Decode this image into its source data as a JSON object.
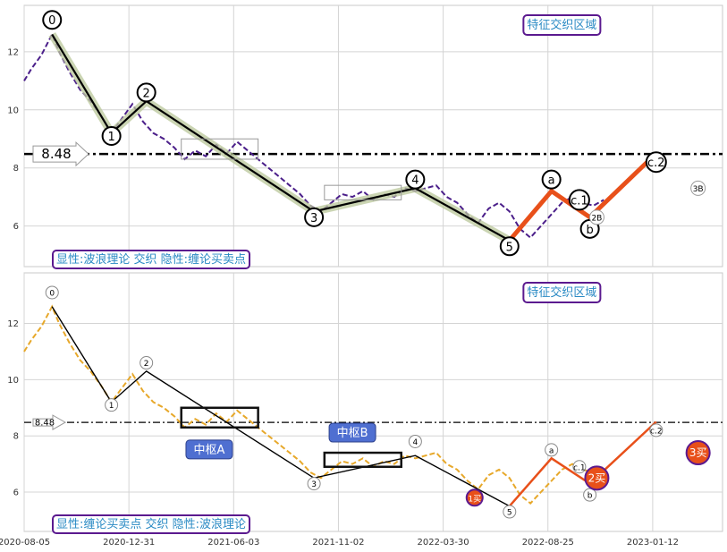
{
  "chart_data": [
    {
      "type": "line",
      "title": "",
      "panel_caption": "显性:波浪理论 交织 隐性:缠论买卖点",
      "feature_zone_label": "特征交织区域",
      "level_label": "8.48",
      "level_value": 8.48,
      "ylim": [
        4.6,
        13.6
      ],
      "y_ticks": [
        6,
        8,
        10,
        12
      ],
      "grid": true,
      "price_color": "#4b1f8a",
      "price": [
        [
          0,
          11.0
        ],
        [
          2,
          11.4
        ],
        [
          5,
          11.9
        ],
        [
          8,
          12.6
        ],
        [
          10,
          12.0
        ],
        [
          13,
          11.3
        ],
        [
          16,
          10.7
        ],
        [
          19,
          10.3
        ],
        [
          22,
          9.8
        ],
        [
          25,
          9.2
        ],
        [
          28,
          9.7
        ],
        [
          31,
          10.2
        ],
        [
          34,
          9.6
        ],
        [
          37,
          9.2
        ],
        [
          40,
          9.0
        ],
        [
          43,
          8.7
        ],
        [
          46,
          8.3
        ],
        [
          49,
          8.6
        ],
        [
          52,
          8.4
        ],
        [
          55,
          8.8
        ],
        [
          58,
          8.5
        ],
        [
          61,
          8.9
        ],
        [
          64,
          8.6
        ],
        [
          67,
          8.3
        ],
        [
          70,
          8.0
        ],
        [
          73,
          7.7
        ],
        [
          76,
          7.4
        ],
        [
          79,
          7.1
        ],
        [
          82,
          6.7
        ],
        [
          85,
          6.5
        ],
        [
          88,
          6.8
        ],
        [
          91,
          7.1
        ],
        [
          94,
          7.0
        ],
        [
          97,
          7.2
        ],
        [
          100,
          6.9
        ],
        [
          103,
          7.1
        ],
        [
          106,
          7.0
        ],
        [
          109,
          7.3
        ],
        [
          112,
          7.2
        ],
        [
          115,
          7.3
        ],
        [
          118,
          7.4
        ],
        [
          121,
          7.0
        ],
        [
          124,
          6.8
        ],
        [
          127,
          6.4
        ],
        [
          130,
          6.1
        ],
        [
          133,
          6.6
        ],
        [
          136,
          6.8
        ],
        [
          139,
          6.5
        ],
        [
          142,
          5.9
        ],
        [
          145,
          5.6
        ],
        [
          148,
          6.0
        ],
        [
          151,
          6.4
        ],
        [
          154,
          6.8
        ],
        [
          157,
          7.0
        ],
        [
          160,
          6.8
        ],
        [
          163,
          6.7
        ],
        [
          166,
          6.9
        ]
      ],
      "wave_path": [
        [
          8,
          12.6
        ],
        [
          25,
          9.2
        ],
        [
          35,
          10.3
        ],
        [
          83,
          6.5
        ],
        [
          112,
          7.3
        ],
        [
          139,
          5.5
        ]
      ],
      "wave_labels": [
        {
          "label": "0",
          "x": 8,
          "y": 13.1
        },
        {
          "label": "1",
          "x": 25,
          "y": 9.1
        },
        {
          "label": "2",
          "x": 35,
          "y": 10.6
        },
        {
          "label": "3",
          "x": 83,
          "y": 6.3
        },
        {
          "label": "4",
          "x": 112,
          "y": 7.6
        },
        {
          "label": "5",
          "x": 139,
          "y": 5.3
        },
        {
          "label": "a",
          "x": 151,
          "y": 7.6
        },
        {
          "label": "b",
          "x": 162,
          "y": 5.9
        },
        {
          "label": "c.1",
          "x": 159,
          "y": 6.9
        },
        {
          "label": "c.2",
          "x": 181,
          "y": 8.2
        }
      ],
      "small_labels": [
        {
          "label": "2B",
          "x": 164,
          "y": 6.3
        },
        {
          "label": "3B",
          "x": 193,
          "y": 7.3
        }
      ],
      "corrective_path": [
        [
          139,
          5.5
        ],
        [
          151,
          7.2
        ],
        [
          162,
          6.3
        ],
        [
          181,
          8.5
        ]
      ]
    },
    {
      "type": "line",
      "title": "",
      "panel_caption": "显性:缠论买卖点 交织 隐性:波浪理论",
      "feature_zone_label": "特征交织区域",
      "level_label": "8.48",
      "level_value": 8.48,
      "ylim": [
        4.6,
        13.8
      ],
      "y_ticks": [
        6,
        8,
        10,
        12
      ],
      "grid": true,
      "price_color": "#e7a82a",
      "x_tick_labels": [
        "2020-08-05",
        "2020-12-31",
        "2021-06-03",
        "2021-11-02",
        "2022-03-30",
        "2022-08-25",
        "2023-01-12"
      ],
      "central_labels": [
        {
          "label": "中枢A",
          "x": 53,
          "y": 7.5
        },
        {
          "label": "中枢B",
          "x": 94,
          "y": 8.1
        }
      ],
      "buy_points": [
        {
          "label": "1买",
          "x": 129,
          "y": 5.8
        },
        {
          "label": "2买",
          "x": 164,
          "y": 6.5
        },
        {
          "label": "3买",
          "x": 193,
          "y": 7.4
        }
      ],
      "wave_labels": [
        {
          "label": "0",
          "x": 8,
          "y": 13.1
        },
        {
          "label": "1",
          "x": 25,
          "y": 9.1
        },
        {
          "label": "2",
          "x": 35,
          "y": 10.6
        },
        {
          "label": "3",
          "x": 83,
          "y": 6.3
        },
        {
          "label": "4",
          "x": 112,
          "y": 7.8
        },
        {
          "label": "5",
          "x": 139,
          "y": 5.3
        },
        {
          "label": "a",
          "x": 151,
          "y": 7.5
        },
        {
          "label": "b",
          "x": 162,
          "y": 5.9
        },
        {
          "label": "c.1",
          "x": 159,
          "y": 6.9
        },
        {
          "label": "c.2",
          "x": 181,
          "y": 8.2
        }
      ]
    }
  ]
}
